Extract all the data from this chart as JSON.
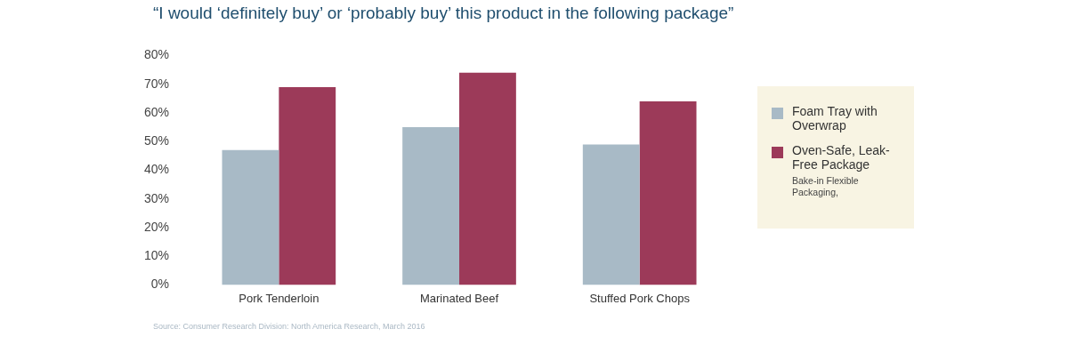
{
  "chart_data": {
    "type": "bar",
    "title": "“I would ‘definitely buy’ or ‘probably buy’ this product in the following package”",
    "categories": [
      "Pork Tenderloin",
      "Marinated Beef",
      "Stuffed Pork Chops"
    ],
    "series": [
      {
        "name": "Foam Tray with Overwrap",
        "color": "#a8bac6",
        "values": [
          47,
          55,
          49
        ]
      },
      {
        "name": "Oven-Safe, Leak-Free Package",
        "color": "#9c3a59",
        "values": [
          69,
          74,
          64
        ]
      }
    ],
    "ylim": [
      0,
      80
    ],
    "yticks": [
      {
        "value": 0,
        "label": "0%"
      },
      {
        "value": 10,
        "label": "10%"
      },
      {
        "value": 20,
        "label": "20%"
      },
      {
        "value": 30,
        "label": "30%"
      },
      {
        "value": 40,
        "label": "40%"
      },
      {
        "value": 50,
        "label": "50%"
      },
      {
        "value": 60,
        "label": "60%"
      },
      {
        "value": 70,
        "label": "70%"
      },
      {
        "value": 80,
        "label": "80%"
      }
    ],
    "grid": false,
    "legend": "right",
    "annotations": [
      "Bake-in Flexible Packaging,",
      "Source: Consumer Research Division: North America Research, March 2016"
    ]
  }
}
